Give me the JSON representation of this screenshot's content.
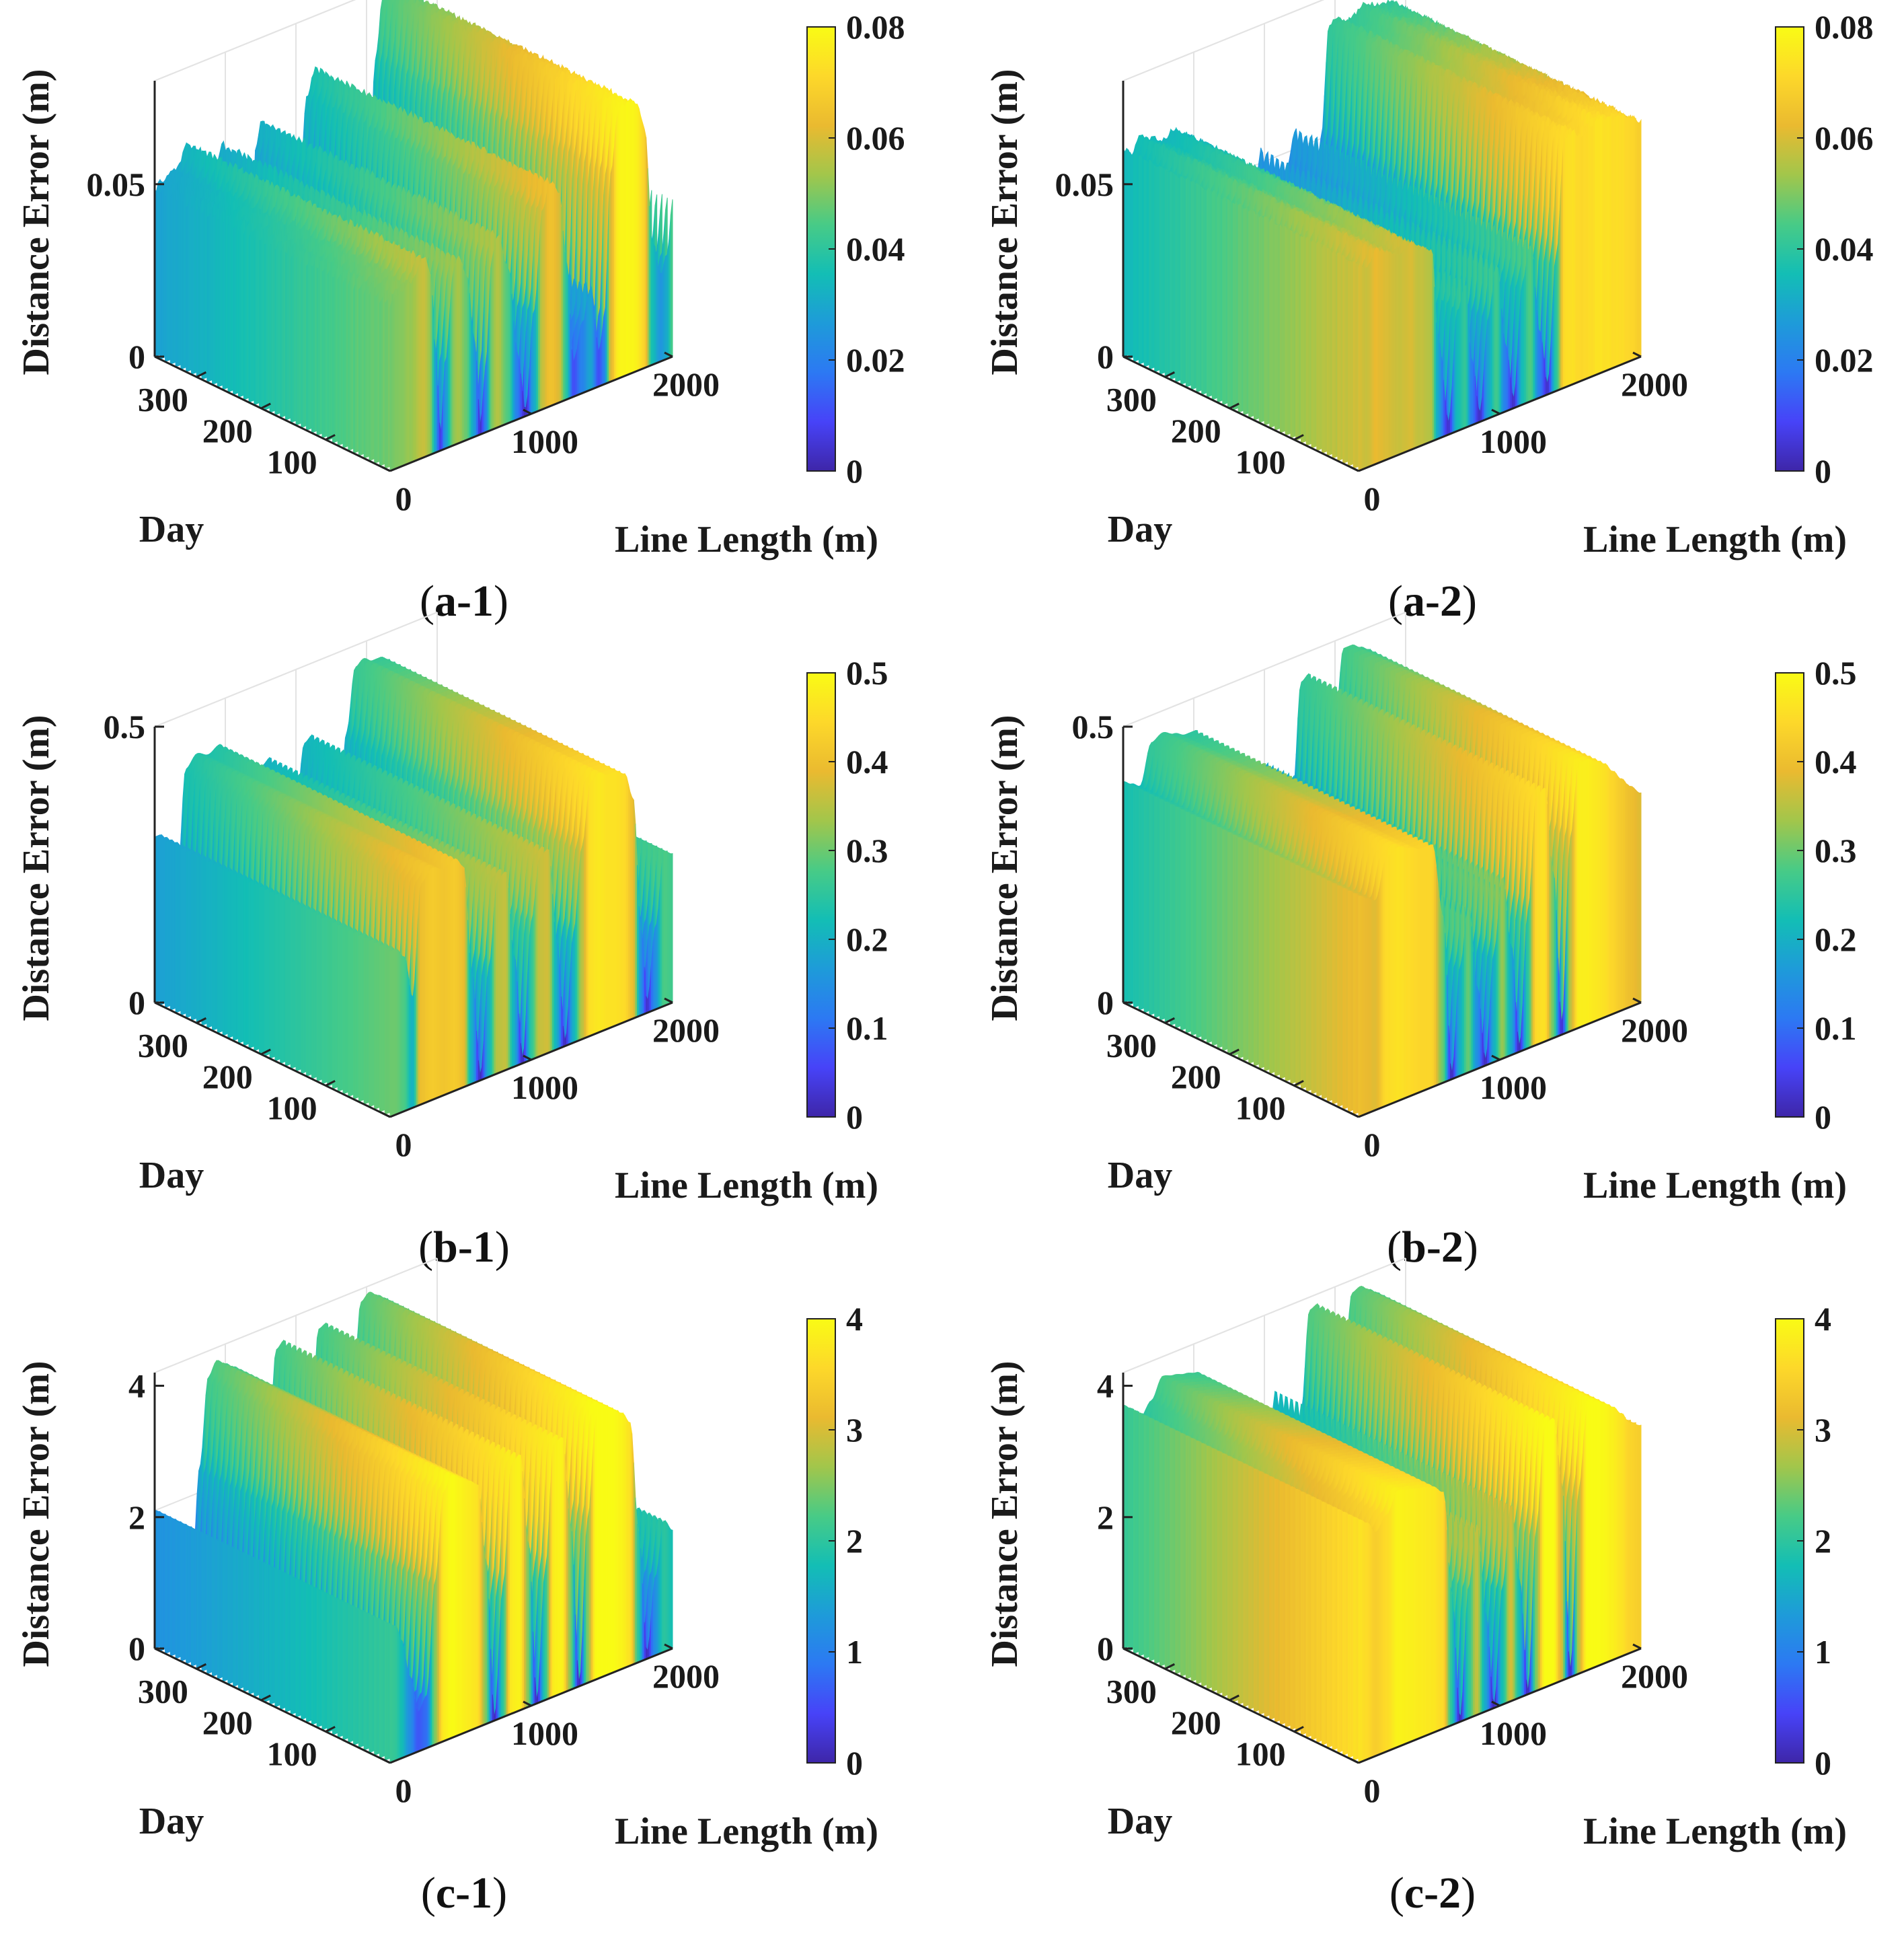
{
  "figure": {
    "background": "#ffffff"
  },
  "colormap": {
    "name": "parula",
    "stops": [
      "#3e26a8",
      "#4743f8",
      "#2c79f3",
      "#1e9bd9",
      "#13beb5",
      "#48cb86",
      "#a2c64b",
      "#eaba30",
      "#fdd82a",
      "#f9fb15"
    ]
  },
  "chart_data": [
    {
      "id": "a-1",
      "caption_letter": "a-1",
      "type": "surface3d",
      "zlabel": "Distance Error (m)",
      "ylabel": "Day",
      "xlabel": "Line Length (m)",
      "x_ticks": [
        "0",
        "1000",
        "2000"
      ],
      "y_ticks": [
        "100",
        "200",
        "300"
      ],
      "z_ticks": [
        "0",
        "0.05"
      ],
      "zlim": [
        0,
        0.08
      ],
      "colorbar_ticks": [
        "0",
        "0.02",
        "0.04",
        "0.06",
        "0.08"
      ],
      "clim": [
        0,
        0.08
      ],
      "x_range": [
        0,
        2000
      ],
      "day_range": [
        0,
        365
      ],
      "noise": true,
      "profile_x": [
        0,
        40,
        150,
        240,
        290,
        320,
        360,
        390,
        450,
        480,
        540,
        600,
        640,
        680,
        720,
        760,
        840,
        900,
        960,
        1020,
        1080,
        1140,
        1200,
        1250,
        1300,
        1360,
        1420,
        1480,
        1520,
        1560,
        1620,
        1680,
        1740,
        1800,
        1860,
        1920,
        1960,
        2000
      ],
      "profile_z": [
        0.048,
        0.05,
        0.052,
        0.058,
        0.052,
        0.03,
        0.005,
        0.025,
        0.05,
        0.054,
        0.048,
        0.028,
        0.003,
        0.02,
        0.05,
        0.056,
        0.045,
        0.02,
        0.002,
        0.03,
        0.058,
        0.065,
        0.06,
        0.04,
        0.01,
        0.02,
        0.03,
        0.01,
        0.02,
        0.06,
        0.078,
        0.079,
        0.078,
        0.07,
        0.035,
        0.025,
        0.03,
        0.045
      ]
    },
    {
      "id": "a-2",
      "caption_letter": "a-2",
      "type": "surface3d",
      "zlabel": "Distance Error (m)",
      "ylabel": "Day",
      "xlabel": "Line Length (m)",
      "x_ticks": [
        "0",
        "1000",
        "2000"
      ],
      "y_ticks": [
        "100",
        "200",
        "300"
      ],
      "z_ticks": [
        "0",
        "0.05"
      ],
      "zlim": [
        0,
        0.08
      ],
      "colorbar_ticks": [
        "0",
        "0.02",
        "0.04",
        "0.06",
        "0.08"
      ],
      "clim": [
        0,
        0.08
      ],
      "x_range": [
        0,
        2000
      ],
      "day_range": [
        0,
        365
      ],
      "noise": true,
      "profile_x": [
        0,
        60,
        120,
        200,
        280,
        360,
        440,
        520,
        560,
        640,
        700,
        760,
        800,
        860,
        920,
        980,
        1040,
        1100,
        1160,
        1220,
        1280,
        1340,
        1400,
        1460,
        1520,
        1580,
        1640,
        1700,
        1760,
        1820,
        1880,
        1940,
        2000
      ],
      "profile_z": [
        0.06,
        0.058,
        0.062,
        0.06,
        0.058,
        0.06,
        0.057,
        0.055,
        0.03,
        0.004,
        0.035,
        0.042,
        0.02,
        0.003,
        0.03,
        0.044,
        0.02,
        0.003,
        0.035,
        0.046,
        0.02,
        0.003,
        0.04,
        0.072,
        0.073,
        0.071,
        0.072,
        0.074,
        0.073,
        0.072,
        0.072,
        0.07,
        0.068
      ]
    },
    {
      "id": "b-1",
      "caption_letter": "b-1",
      "type": "surface3d",
      "zlabel": "Distance Error (m)",
      "ylabel": "Day",
      "xlabel": "Line Length (m)",
      "x_ticks": [
        "0",
        "1000",
        "2000"
      ],
      "y_ticks": [
        "100",
        "200",
        "300"
      ],
      "z_ticks": [
        "0",
        "0.5"
      ],
      "zlim": [
        0,
        0.5
      ],
      "colorbar_ticks": [
        "0",
        "0.1",
        "0.2",
        "0.3",
        "0.4",
        "0.5"
      ],
      "clim": [
        0,
        0.5
      ],
      "x_range": [
        0,
        2000
      ],
      "day_range": [
        0,
        365
      ],
      "noise": false,
      "profile_x": [
        0,
        40,
        100,
        160,
        220,
        300,
        380,
        460,
        520,
        580,
        640,
        700,
        760,
        820,
        880,
        940,
        1000,
        1060,
        1120,
        1180,
        1240,
        1300,
        1360,
        1420,
        1480,
        1540,
        1600,
        1660,
        1720,
        1780,
        1820,
        1880,
        1940,
        2000
      ],
      "profile_z": [
        0.3,
        0.3,
        0.28,
        0.2,
        0.4,
        0.42,
        0.41,
        0.42,
        0.4,
        0.2,
        0.01,
        0.2,
        0.35,
        0.36,
        0.2,
        0.01,
        0.25,
        0.36,
        0.37,
        0.2,
        0.01,
        0.2,
        0.35,
        0.46,
        0.47,
        0.46,
        0.46,
        0.45,
        0.4,
        0.15,
        0.02,
        0.15,
        0.28,
        0.27
      ]
    },
    {
      "id": "b-2",
      "caption_letter": "b-2",
      "type": "surface3d",
      "zlabel": "Distance Error (m)",
      "ylabel": "Day",
      "xlabel": "Line Length (m)",
      "x_ticks": [
        "0",
        "1000",
        "2000"
      ],
      "y_ticks": [
        "100",
        "200",
        "300"
      ],
      "z_ticks": [
        "0",
        "0.5"
      ],
      "zlim": [
        0,
        0.5
      ],
      "colorbar_ticks": [
        "0",
        "0.1",
        "0.2",
        "0.3",
        "0.4",
        "0.5"
      ],
      "clim": [
        0,
        0.5
      ],
      "x_range": [
        0,
        2000
      ],
      "day_range": [
        0,
        365
      ],
      "noise": false,
      "profile_x": [
        0,
        60,
        120,
        200,
        280,
        360,
        440,
        520,
        600,
        660,
        720,
        780,
        840,
        900,
        960,
        1020,
        1080,
        1140,
        1200,
        1260,
        1320,
        1380,
        1440,
        1500,
        1560,
        1620,
        1680,
        1740,
        1800,
        1860,
        1920,
        2000
      ],
      "profile_z": [
        0.4,
        0.39,
        0.38,
        0.45,
        0.46,
        0.45,
        0.44,
        0.44,
        0.3,
        0.01,
        0.2,
        0.3,
        0.15,
        0.01,
        0.2,
        0.33,
        0.2,
        0.01,
        0.25,
        0.45,
        0.46,
        0.3,
        0.02,
        0.35,
        0.48,
        0.48,
        0.47,
        0.46,
        0.44,
        0.42,
        0.4,
        0.38
      ]
    },
    {
      "id": "c-1",
      "caption_letter": "c-1",
      "type": "surface3d",
      "zlabel": "Distance Error (m)",
      "ylabel": "Day",
      "xlabel": "Line Length (m)",
      "x_ticks": [
        "0",
        "1000",
        "2000"
      ],
      "y_ticks": [
        "100",
        "200",
        "300"
      ],
      "z_ticks": [
        "0",
        "2",
        "4"
      ],
      "zlim": [
        0,
        4.2
      ],
      "colorbar_ticks": [
        "0",
        "1",
        "2",
        "3",
        "4"
      ],
      "clim": [
        0,
        4
      ],
      "x_range": [
        0,
        2000
      ],
      "day_range": [
        0,
        365
      ],
      "noise": false,
      "profile_x": [
        0,
        40,
        80,
        140,
        200,
        260,
        320,
        380,
        440,
        500,
        560,
        620,
        680,
        740,
        800,
        860,
        920,
        980,
        1040,
        1100,
        1160,
        1220,
        1280,
        1340,
        1400,
        1460,
        1520,
        1580,
        1640,
        1700,
        1760,
        1820,
        1880,
        1940,
        2000
      ],
      "profile_z": [
        2.1,
        2.05,
        1.8,
        1.2,
        0.6,
        0.8,
        2.5,
        3.8,
        4.0,
        3.9,
        3.8,
        3.7,
        2.5,
        0.05,
        2.0,
        3.8,
        3.9,
        2.5,
        0.05,
        2.0,
        3.85,
        3.9,
        2.5,
        0.05,
        2.5,
        4.0,
        4.1,
        4.0,
        3.9,
        3.7,
        2.0,
        0.1,
        1.2,
        2.0,
        1.8
      ]
    },
    {
      "id": "c-2",
      "caption_letter": "c-2",
      "type": "surface3d",
      "zlabel": "Distance Error (m)",
      "ylabel": "Day",
      "xlabel": "Line Length (m)",
      "x_ticks": [
        "0",
        "1000",
        "2000"
      ],
      "y_ticks": [
        "100",
        "200",
        "300"
      ],
      "z_ticks": [
        "0",
        "2",
        "4"
      ],
      "zlim": [
        0,
        4.2
      ],
      "colorbar_ticks": [
        "0",
        "1",
        "2",
        "3",
        "4"
      ],
      "clim": [
        0,
        4
      ],
      "x_range": [
        0,
        2000
      ],
      "day_range": [
        0,
        365
      ],
      "noise": false,
      "profile_x": [
        0,
        60,
        120,
        200,
        280,
        360,
        440,
        520,
        600,
        660,
        720,
        780,
        840,
        900,
        960,
        1020,
        1080,
        1140,
        1200,
        1260,
        1320,
        1380,
        1440,
        1500,
        1560,
        1620,
        1680,
        1740,
        1800,
        1860,
        1920,
        2000
      ],
      "profile_z": [
        3.7,
        3.6,
        3.4,
        3.6,
        3.9,
        3.85,
        3.8,
        3.75,
        3.6,
        2.0,
        0.05,
        2.0,
        2.9,
        1.5,
        0.05,
        1.8,
        3.0,
        1.8,
        0.05,
        2.5,
        4.0,
        4.05,
        3.0,
        0.1,
        2.8,
        4.0,
        4.05,
        3.95,
        3.85,
        3.7,
        3.5,
        3.4
      ]
    }
  ]
}
